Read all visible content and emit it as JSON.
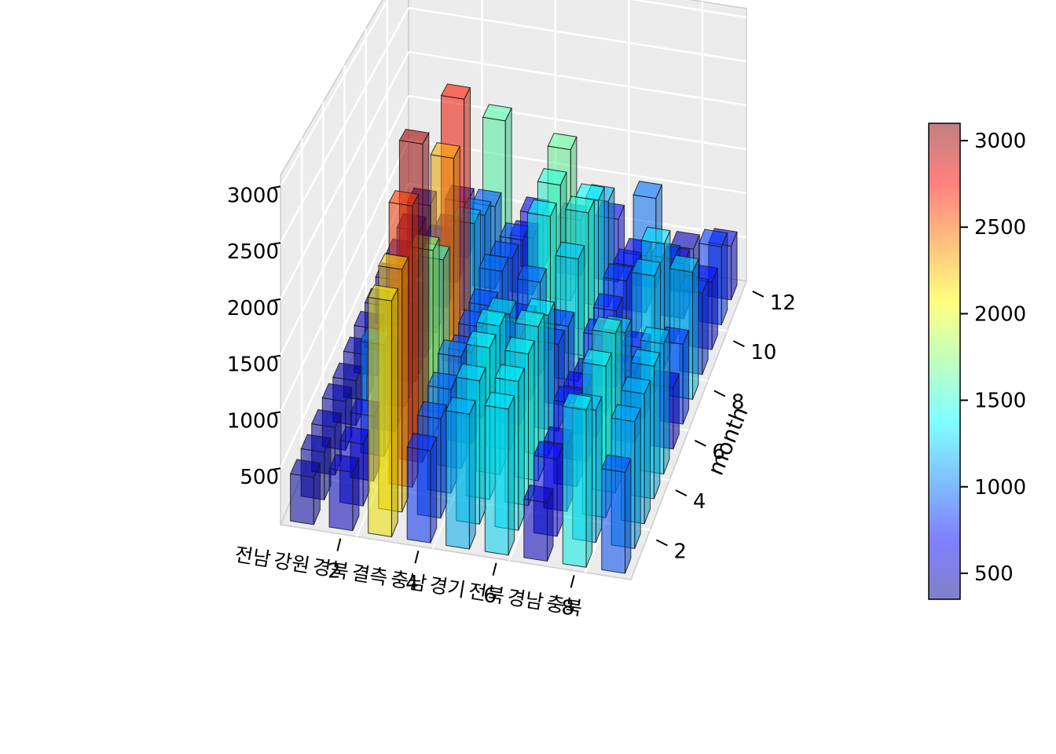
{
  "chart_data": {
    "type": "bar3d",
    "title": "",
    "xlabel": "",
    "ylabel": "month",
    "zlabel": "",
    "x_ticks": [
      "2",
      "4",
      "6",
      "8"
    ],
    "y_ticks": [
      "2",
      "4",
      "6",
      "8",
      "10",
      "12"
    ],
    "z_ticks": [
      "500",
      "1000",
      "1500",
      "2000",
      "2500",
      "3000"
    ],
    "z_range": [
      0,
      3100
    ],
    "categories": [
      "전남",
      "강원",
      "경북",
      "결측",
      "충남",
      "경기",
      "전북",
      "경남",
      "충북"
    ],
    "months": [
      1,
      2,
      3,
      4,
      5,
      6,
      7,
      8,
      9,
      10,
      11,
      12
    ],
    "values": [
      [
        420,
        430,
        440,
        460,
        430,
        450,
        470,
        460,
        480,
        480,
        500,
        520
      ],
      [
        520,
        560,
        600,
        1050,
        760,
        800,
        640,
        600,
        640,
        700,
        560,
        620
      ],
      [
        2100,
        2200,
        2600,
        3000,
        1800,
        1500,
        2300,
        2700,
        1200,
        1050,
        900,
        1600
      ],
      [
        820,
        900,
        960,
        1050,
        880,
        900,
        880,
        1000,
        900,
        850,
        620,
        620
      ],
      [
        1200,
        1300,
        1400,
        1400,
        1300,
        850,
        800,
        950,
        1400,
        1500,
        1650,
        620
      ],
      [
        1300,
        1350,
        1400,
        1450,
        1350,
        850,
        800,
        1250,
        1500,
        1400,
        1150,
        700
      ],
      [
        520,
        700,
        620,
        780,
        700,
        600,
        760,
        780,
        850,
        760,
        620,
        1000
      ],
      [
        1400,
        1200,
        1400,
        1500,
        1300,
        700,
        700,
        1200,
        1300,
        900,
        600,
        500
      ],
      [
        900,
        1150,
        1200,
        1250,
        1250,
        600,
        800,
        1300,
        850,
        720,
        850,
        600
      ]
    ],
    "colorbar": {
      "ticks": [
        "500",
        "1000",
        "1500",
        "2000",
        "2500",
        "3000"
      ],
      "range": [
        350,
        3100
      ],
      "colors": [
        "#00008F",
        "#0000FF",
        "#0080FF",
        "#00FFFF",
        "#80FF80",
        "#FFFF00",
        "#FF8000",
        "#FF0000",
        "#800000"
      ]
    },
    "grid": true
  }
}
